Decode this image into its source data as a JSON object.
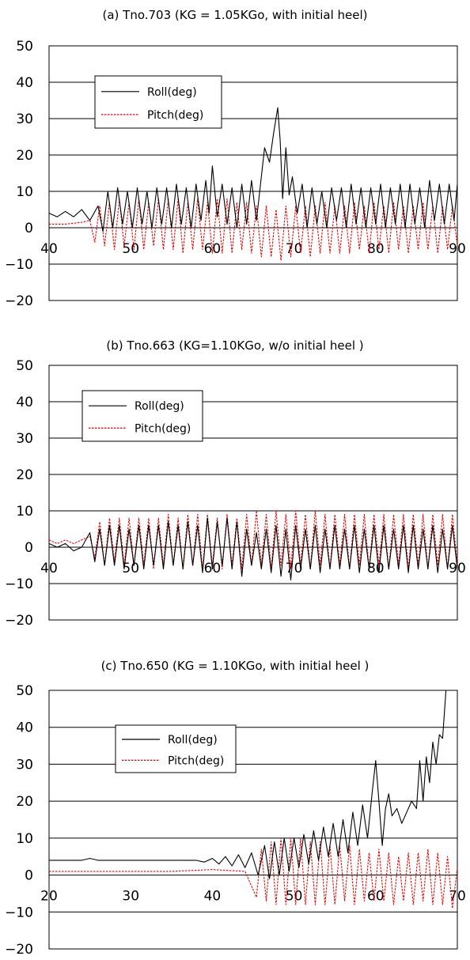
{
  "chart_data": [
    {
      "type": "line",
      "title": "(a) Tno.703 (KG = 1.05KGo, with initial heel)",
      "xlim": [
        40,
        90
      ],
      "ylim": [
        -20,
        50
      ],
      "x_ticks": [
        "40",
        "50",
        "60",
        "70",
        "80",
        "90"
      ],
      "y_ticks": [
        "50",
        "40",
        "30",
        "20",
        "10",
        "0",
        "−10",
        "−20"
      ],
      "grid": "horizontal",
      "legend_position": "upper-left",
      "series": [
        {
          "name": "Roll(deg)",
          "color": "#000000",
          "style": "solid",
          "x": [
            40,
            41,
            42,
            43,
            44,
            45,
            46,
            46.6,
            47.2,
            47.8,
            48.4,
            49,
            49.6,
            50.2,
            50.8,
            51.4,
            52,
            52.6,
            53.2,
            53.8,
            54.4,
            55,
            55.6,
            56.2,
            56.8,
            57.4,
            58,
            58.6,
            59.2,
            59.6,
            60,
            60.6,
            61.2,
            61.8,
            62.4,
            63,
            63.6,
            64.2,
            64.8,
            65.4,
            66,
            66.4,
            67,
            67.5,
            68,
            68.3,
            68.6,
            69,
            69.4,
            69.8,
            70.4,
            71,
            71.6,
            72.2,
            72.8,
            73.4,
            74,
            74.6,
            75.2,
            75.8,
            76.4,
            77,
            77.6,
            78.2,
            78.8,
            79.4,
            80,
            80.6,
            81.2,
            81.8,
            82.4,
            83,
            83.6,
            84.2,
            84.8,
            85.4,
            86,
            86.6,
            87.2,
            87.8,
            88.4,
            89,
            89.6,
            90
          ],
          "y": [
            4,
            3,
            4.5,
            3,
            5,
            2,
            6,
            -1,
            10,
            0,
            11,
            1,
            10,
            0,
            11,
            1,
            10,
            0,
            11,
            1,
            11,
            0,
            12,
            1,
            11,
            0,
            12,
            2,
            13,
            4,
            17,
            3,
            12,
            1,
            11,
            0,
            12,
            1,
            13,
            2,
            14,
            22,
            18,
            26,
            33,
            24,
            8,
            22,
            9,
            14,
            4,
            12,
            0,
            11,
            1,
            10,
            0,
            11,
            2,
            11,
            0,
            12,
            1,
            11,
            0,
            11,
            1,
            12,
            0,
            11,
            1,
            12,
            0,
            12,
            1,
            11,
            0,
            13,
            2,
            12,
            1,
            12,
            2,
            12
          ]
        },
        {
          "name": "Pitch(deg)",
          "color": "#ee0000",
          "style": "dashed",
          "x": [
            40,
            42,
            44,
            45,
            45.6,
            46.2,
            46.8,
            47.4,
            48,
            48.6,
            49.2,
            49.8,
            50.4,
            51,
            51.6,
            52.2,
            52.8,
            53.4,
            54,
            54.6,
            55.2,
            55.8,
            56.4,
            57,
            57.6,
            58.2,
            58.8,
            59.4,
            60,
            60.6,
            61.2,
            61.8,
            62.4,
            63,
            63.6,
            64.2,
            64.8,
            65.4,
            66,
            66.6,
            67.2,
            67.8,
            68.4,
            69,
            69.6,
            70.2,
            70.8,
            71.4,
            72,
            72.6,
            73.2,
            73.8,
            74.4,
            75,
            75.6,
            76.2,
            76.8,
            77.4,
            78,
            78.6,
            79.2,
            79.8,
            80.4,
            81,
            81.6,
            82.2,
            82.8,
            83.4,
            84,
            84.6,
            85.2,
            85.8,
            86.4,
            87,
            87.6,
            88.2,
            88.8,
            89.4,
            90
          ],
          "y": [
            1,
            1,
            1.5,
            2,
            -4,
            6,
            -5,
            7,
            -6,
            8,
            -5,
            7,
            -6,
            8,
            -6,
            7,
            -5,
            8,
            -6,
            8,
            -6,
            8,
            -7,
            7,
            -6,
            8,
            -6,
            7,
            -7,
            8,
            -7,
            8,
            -7,
            7,
            -6,
            7,
            -7,
            6,
            -8,
            6,
            -8,
            5,
            -9,
            6,
            -8,
            6,
            -7,
            6,
            -8,
            6,
            -7,
            7,
            -7,
            6,
            -7,
            6,
            -7,
            7,
            -6,
            6,
            -7,
            7,
            -6,
            6,
            -7,
            7,
            -6,
            6,
            -7,
            6,
            -6,
            7,
            -6,
            6,
            -7,
            6,
            -6,
            6,
            -5
          ]
        }
      ]
    },
    {
      "type": "line",
      "title": "(b) Tno.663 (KG=1.10KGo, w/o initial heel )",
      "xlim": [
        40,
        90
      ],
      "ylim": [
        -20,
        50
      ],
      "x_ticks": [
        "40",
        "50",
        "60",
        "70",
        "80",
        "90"
      ],
      "y_ticks": [
        "50",
        "40",
        "30",
        "20",
        "10",
        "0",
        "−10",
        "−20"
      ],
      "grid": "horizontal",
      "legend_position": "upper-left",
      "series": [
        {
          "name": "Roll(deg)",
          "color": "#000000",
          "style": "solid",
          "x": [
            40,
            41,
            42,
            43,
            44,
            45,
            45.6,
            46.2,
            46.8,
            47.4,
            48,
            48.6,
            49.2,
            49.8,
            50.4,
            51,
            51.6,
            52.2,
            52.8,
            53.4,
            54,
            54.6,
            55.2,
            55.8,
            56.4,
            57,
            57.6,
            58.2,
            58.8,
            59.4,
            60,
            60.6,
            61.2,
            61.8,
            62.4,
            63,
            63.6,
            64.2,
            64.8,
            65.4,
            66,
            66.6,
            67.2,
            67.8,
            68.4,
            69,
            69.6,
            70.2,
            70.8,
            71.4,
            72,
            72.6,
            73.2,
            73.8,
            74.4,
            75,
            75.6,
            76.2,
            76.8,
            77.4,
            78,
            78.6,
            79.2,
            79.8,
            80.4,
            81,
            81.6,
            82.2,
            82.8,
            83.4,
            84,
            84.6,
            85.2,
            85.8,
            86.4,
            87,
            87.6,
            88.2,
            88.8,
            89.4,
            90
          ],
          "y": [
            1,
            0,
            1,
            -1,
            0,
            4,
            -4,
            5,
            -5,
            6,
            -5,
            6,
            -6,
            5,
            -5,
            6,
            -6,
            6,
            -5,
            6,
            -6,
            7,
            -5,
            6,
            -6,
            7,
            -5,
            6,
            -7,
            8,
            -6,
            7,
            -5,
            8,
            -6,
            7,
            -8,
            5,
            -5,
            4,
            -6,
            5,
            -7,
            6,
            -8,
            5,
            -9,
            6,
            -6,
            5,
            -6,
            6,
            -7,
            5,
            -6,
            6,
            -6,
            5,
            -6,
            6,
            -7,
            5,
            -6,
            6,
            -7,
            6,
            -6,
            5,
            -6,
            6,
            -7,
            6,
            -6,
            5,
            -6,
            6,
            -7,
            5,
            -6,
            6,
            -6
          ]
        },
        {
          "name": "Pitch(deg)",
          "color": "#ee0000",
          "style": "dashed",
          "x": [
            40,
            41,
            42,
            43,
            44,
            45,
            45.6,
            46.2,
            46.8,
            47.4,
            48,
            48.6,
            49.2,
            49.8,
            50.4,
            51,
            51.6,
            52.2,
            52.8,
            53.4,
            54,
            54.6,
            55.2,
            55.8,
            56.4,
            57,
            57.6,
            58.2,
            58.8,
            59.4,
            60,
            60.6,
            61.2,
            61.8,
            62.4,
            63,
            63.6,
            64.2,
            64.8,
            65.4,
            66,
            66.6,
            67.2,
            67.8,
            68.4,
            69,
            69.6,
            70.2,
            70.8,
            71.4,
            72,
            72.6,
            73.2,
            73.8,
            74.4,
            75,
            75.6,
            76.2,
            76.8,
            77.4,
            78,
            78.6,
            79.2,
            79.8,
            80.4,
            81,
            81.6,
            82.2,
            82.8,
            83.4,
            84,
            84.6,
            85.2,
            85.8,
            86.4,
            87,
            87.6,
            88.2,
            88.8,
            89.4,
            90
          ],
          "y": [
            2,
            1,
            2,
            1,
            2,
            3,
            -3,
            7,
            -5,
            8,
            -4,
            8,
            -5,
            8,
            -5,
            8,
            -5,
            8,
            -6,
            8,
            -5,
            9,
            -5,
            8,
            -6,
            9,
            -5,
            9,
            -6,
            9,
            -5,
            8,
            -6,
            9,
            -5,
            8,
            -6,
            9,
            -5,
            10,
            -5,
            9,
            -6,
            10,
            -5,
            9,
            -6,
            10,
            -5,
            9,
            -6,
            10,
            -5,
            9,
            -6,
            9,
            -5,
            9,
            -6,
            9,
            -5,
            9,
            -6,
            9,
            -5,
            9,
            -6,
            9,
            -5,
            9,
            -6,
            9,
            -5,
            9,
            -6,
            9,
            -5,
            9,
            -6,
            9,
            -5
          ]
        }
      ]
    },
    {
      "type": "line",
      "title": "(c) Tno.650 (KG = 1.10KGo, with initial heel )",
      "xlim": [
        20,
        70
      ],
      "ylim": [
        -20,
        50
      ],
      "x_ticks": [
        "20",
        "30",
        "40",
        "50",
        "60",
        "70"
      ],
      "y_ticks": [
        "50",
        "40",
        "30",
        "20",
        "10",
        "0",
        "−10",
        "−20"
      ],
      "grid": "horizontal",
      "legend_position": "upper-left",
      "series": [
        {
          "name": "Roll(deg)",
          "color": "#000000",
          "style": "solid",
          "x": [
            20,
            22,
            24,
            25,
            26,
            28,
            30,
            32,
            34,
            36,
            38,
            39,
            40,
            40.8,
            41.6,
            42.4,
            43.2,
            44,
            44.8,
            45.6,
            46.4,
            47,
            47.6,
            48.2,
            48.8,
            49.4,
            50,
            50.6,
            51.2,
            51.8,
            52.4,
            53,
            53.6,
            54.2,
            54.8,
            55.4,
            56,
            56.6,
            57.2,
            57.8,
            58.4,
            59,
            59.6,
            60,
            60.4,
            60.8,
            61.2,
            61.6,
            62,
            62.6,
            63.2,
            63.8,
            64.4,
            65,
            65.4,
            65.8,
            66.2,
            66.6,
            67,
            67.4,
            67.8,
            68.2,
            68.6,
            69
          ],
          "y": [
            4,
            4,
            4,
            4.5,
            4,
            4,
            4,
            4,
            4,
            4,
            4,
            3.5,
            4.5,
            3,
            5,
            2.5,
            5.5,
            2,
            6,
            0,
            8,
            -1,
            9,
            0,
            10,
            1,
            10,
            2,
            11,
            3,
            12,
            4,
            13,
            5,
            14,
            5,
            15,
            6,
            17,
            8,
            19,
            10,
            23,
            31,
            20,
            8,
            18,
            22,
            16,
            18,
            14,
            17,
            20,
            18,
            31,
            20,
            32,
            25,
            36,
            30,
            38,
            37,
            50,
            50
          ]
        },
        {
          "name": "Pitch(deg)",
          "color": "#ee0000",
          "style": "dashed",
          "x": [
            20,
            25,
            30,
            35,
            40,
            44,
            45.4,
            46,
            46.6,
            47.2,
            47.8,
            48.4,
            49,
            49.6,
            50.2,
            50.8,
            51.4,
            52,
            52.6,
            53.2,
            53.8,
            54.4,
            55,
            55.6,
            56.2,
            56.8,
            57.4,
            58,
            58.6,
            59.2,
            59.8,
            60.4,
            61,
            61.6,
            62.2,
            62.8,
            63.4,
            64,
            64.6,
            65.2,
            65.8,
            66.4,
            67,
            67.6,
            68.2,
            68.8,
            69.4,
            70
          ],
          "y": [
            1,
            1,
            1,
            1,
            1.5,
            1,
            -6,
            7,
            -7,
            9,
            -8,
            10,
            -8,
            10,
            -8,
            10,
            -8,
            9,
            -8,
            9,
            -8,
            8,
            -8,
            8,
            -7,
            8,
            -8,
            7,
            -7,
            6,
            -7,
            7,
            -7,
            6,
            -8,
            5,
            -7,
            6,
            -8,
            6,
            -7,
            7,
            -8,
            6,
            -8,
            5,
            -9,
            2
          ]
        }
      ]
    }
  ]
}
